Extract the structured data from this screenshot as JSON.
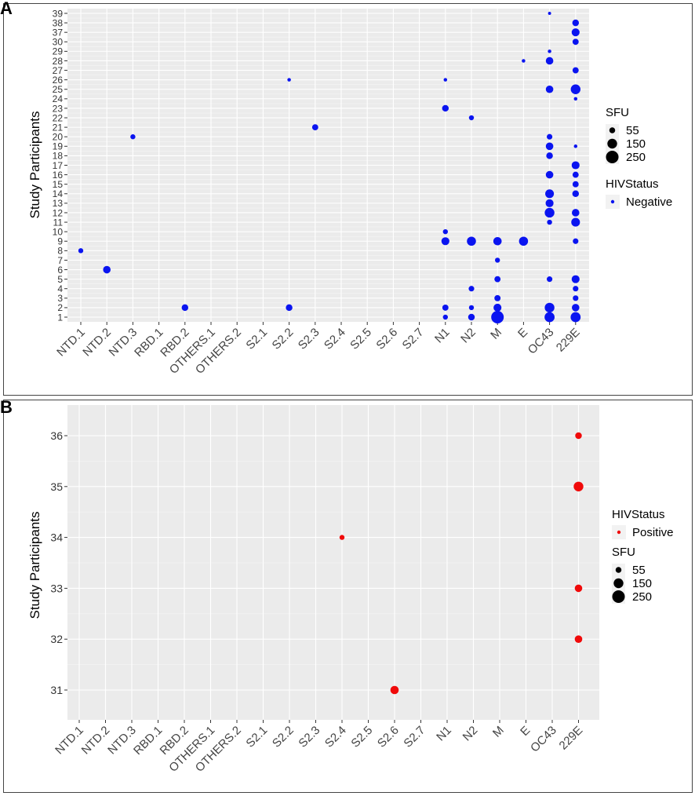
{
  "chart_data": [
    {
      "panel": "A",
      "type": "scatter",
      "xlabel": "",
      "ylabel": "Study Participants",
      "categories": [
        "NTD.1",
        "NTD.2",
        "NTD.3",
        "RBD.1",
        "RBD.2",
        "OTHERS.1",
        "OTHERS.2",
        "S2.1",
        "S2.2",
        "S2.3",
        "S2.4",
        "S2.5",
        "S2.6",
        "S2.7",
        "N1",
        "N2",
        "M",
        "E",
        "OC43",
        "229E"
      ],
      "y_ticks": [
        "1",
        "2",
        "3",
        "4",
        "5",
        "6",
        "7",
        "8",
        "9",
        "10",
        "11",
        "12",
        "13",
        "14",
        "15",
        "16",
        "17",
        "18",
        "19",
        "20",
        "21",
        "22",
        "23",
        "24",
        "25",
        "26",
        "27",
        "28",
        "29",
        "30",
        "37",
        "38",
        "39"
      ],
      "legend": {
        "size_title": "SFU",
        "size_labels": [
          "55",
          "150",
          "250"
        ],
        "size_values": [
          55,
          150,
          250
        ],
        "color_title": "HIVStatus",
        "color_label": "Negative",
        "color": "#0a14f0",
        "order": [
          "size",
          "color"
        ]
      },
      "points": [
        {
          "x": "NTD.1",
          "y": "8",
          "sfu": 40
        },
        {
          "x": "NTD.2",
          "y": "6",
          "sfu": 90
        },
        {
          "x": "NTD.3",
          "y": "20",
          "sfu": 40
        },
        {
          "x": "RBD.2",
          "y": "2",
          "sfu": 70
        },
        {
          "x": "S2.2",
          "y": "26",
          "sfu": 20
        },
        {
          "x": "S2.2",
          "y": "2",
          "sfu": 70
        },
        {
          "x": "S2.3",
          "y": "21",
          "sfu": 60
        },
        {
          "x": "N1",
          "y": "26",
          "sfu": 20
        },
        {
          "x": "N1",
          "y": "23",
          "sfu": 70
        },
        {
          "x": "N1",
          "y": "10",
          "sfu": 40
        },
        {
          "x": "N1",
          "y": "9",
          "sfu": 100
        },
        {
          "x": "N1",
          "y": "2",
          "sfu": 60
        },
        {
          "x": "N1",
          "y": "1",
          "sfu": 40
        },
        {
          "x": "N2",
          "y": "22",
          "sfu": 40
        },
        {
          "x": "N2",
          "y": "9",
          "sfu": 130
        },
        {
          "x": "N2",
          "y": "4",
          "sfu": 50
        },
        {
          "x": "N2",
          "y": "2",
          "sfu": 40
        },
        {
          "x": "N2",
          "y": "1",
          "sfu": 70
        },
        {
          "x": "M",
          "y": "9",
          "sfu": 110
        },
        {
          "x": "M",
          "y": "7",
          "sfu": 40
        },
        {
          "x": "M",
          "y": "5",
          "sfu": 60
        },
        {
          "x": "M",
          "y": "3",
          "sfu": 60
        },
        {
          "x": "M",
          "y": "2",
          "sfu": 100
        },
        {
          "x": "M",
          "y": "1",
          "sfu": 250
        },
        {
          "x": "E",
          "y": "28",
          "sfu": 20
        },
        {
          "x": "E",
          "y": "9",
          "sfu": 130
        },
        {
          "x": "OC43",
          "y": "39",
          "sfu": 15
        },
        {
          "x": "OC43",
          "y": "29",
          "sfu": 20
        },
        {
          "x": "OC43",
          "y": "28",
          "sfu": 90
        },
        {
          "x": "OC43",
          "y": "25",
          "sfu": 90
        },
        {
          "x": "OC43",
          "y": "20",
          "sfu": 50
        },
        {
          "x": "OC43",
          "y": "19",
          "sfu": 90
        },
        {
          "x": "OC43",
          "y": "18",
          "sfu": 70
        },
        {
          "x": "OC43",
          "y": "16",
          "sfu": 90
        },
        {
          "x": "OC43",
          "y": "14",
          "sfu": 120
        },
        {
          "x": "OC43",
          "y": "13",
          "sfu": 100
        },
        {
          "x": "OC43",
          "y": "12",
          "sfu": 150
        },
        {
          "x": "OC43",
          "y": "11",
          "sfu": 40
        },
        {
          "x": "OC43",
          "y": "5",
          "sfu": 50
        },
        {
          "x": "OC43",
          "y": "2",
          "sfu": 150
        },
        {
          "x": "OC43",
          "y": "1",
          "sfu": 160
        },
        {
          "x": "229E",
          "y": "38",
          "sfu": 70
        },
        {
          "x": "229E",
          "y": "37",
          "sfu": 100
        },
        {
          "x": "229E",
          "y": "30",
          "sfu": 60
        },
        {
          "x": "229E",
          "y": "27",
          "sfu": 60
        },
        {
          "x": "229E",
          "y": "25",
          "sfu": 150
        },
        {
          "x": "229E",
          "y": "24",
          "sfu": 20
        },
        {
          "x": "229E",
          "y": "19",
          "sfu": 20
        },
        {
          "x": "229E",
          "y": "17",
          "sfu": 100
        },
        {
          "x": "229E",
          "y": "16",
          "sfu": 60
        },
        {
          "x": "229E",
          "y": "15",
          "sfu": 60
        },
        {
          "x": "229E",
          "y": "14",
          "sfu": 70
        },
        {
          "x": "229E",
          "y": "12",
          "sfu": 90
        },
        {
          "x": "229E",
          "y": "11",
          "sfu": 120
        },
        {
          "x": "229E",
          "y": "9",
          "sfu": 50
        },
        {
          "x": "229E",
          "y": "5",
          "sfu": 100
        },
        {
          "x": "229E",
          "y": "4",
          "sfu": 50
        },
        {
          "x": "229E",
          "y": "3",
          "sfu": 50
        },
        {
          "x": "229E",
          "y": "2",
          "sfu": 90
        },
        {
          "x": "229E",
          "y": "1",
          "sfu": 160
        }
      ]
    },
    {
      "panel": "B",
      "type": "scatter",
      "xlabel": "",
      "ylabel": "Study Participants",
      "categories": [
        "NTD.1",
        "NTD.2",
        "NTD.3",
        "RBD.1",
        "RBD.2",
        "OTHERS.1",
        "OTHERS.2",
        "S2.1",
        "S2.2",
        "S2.3",
        "S2.4",
        "S2.5",
        "S2.6",
        "S2.7",
        "N1",
        "N2",
        "M",
        "E",
        "OC43",
        "229E"
      ],
      "y_ticks": [
        "31",
        "32",
        "33",
        "34",
        "35",
        "36"
      ],
      "legend": {
        "size_title": "SFU",
        "size_labels": [
          "55",
          "150",
          "250"
        ],
        "size_values": [
          55,
          150,
          250
        ],
        "color_title": "HIVStatus",
        "color_label": "Positive",
        "color": "#f00a0a",
        "order": [
          "color",
          "size"
        ]
      },
      "points": [
        {
          "x": "229E",
          "y": "36",
          "sfu": 70
        },
        {
          "x": "229E",
          "y": "35",
          "sfu": 150
        },
        {
          "x": "S2.4",
          "y": "34",
          "sfu": 40
        },
        {
          "x": "229E",
          "y": "33",
          "sfu": 90
        },
        {
          "x": "229E",
          "y": "32",
          "sfu": 90
        },
        {
          "x": "S2.6",
          "y": "31",
          "sfu": 110
        }
      ]
    }
  ],
  "panels": [
    {
      "letter": "A"
    },
    {
      "letter": "B"
    }
  ]
}
